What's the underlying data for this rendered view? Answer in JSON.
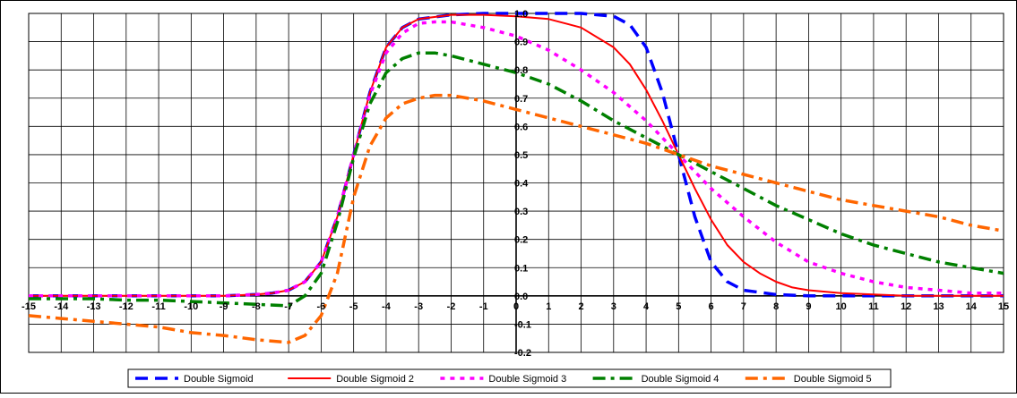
{
  "chart_data": {
    "type": "line",
    "title": "",
    "xlabel": "",
    "ylabel": "",
    "xlim": [
      -15,
      15
    ],
    "ylim": [
      -0.2,
      1.0
    ],
    "x_ticks": [
      -15,
      -14,
      -13,
      -12,
      -11,
      -10,
      -9,
      -8,
      -7,
      -6,
      -5,
      -4,
      -3,
      -2,
      -1,
      0,
      1,
      2,
      3,
      4,
      5,
      6,
      7,
      8,
      9,
      10,
      11,
      12,
      13,
      14,
      15
    ],
    "y_ticks": [
      -0.2,
      -0.1,
      0.0,
      0.1,
      0.2,
      0.3,
      0.4,
      0.5,
      0.6,
      0.7,
      0.8,
      0.9,
      1.0
    ],
    "grid": true,
    "legend_position": "bottom",
    "series": [
      {
        "name": "Double Sigmoid",
        "color": "#0000ff",
        "style": "dashed",
        "x": [
          -15,
          -14,
          -13,
          -12,
          -11,
          -10,
          -9,
          -8,
          -7.5,
          -7,
          -6.5,
          -6,
          -5.5,
          -5,
          -4.5,
          -4,
          -3.5,
          -3,
          -2,
          -1,
          0,
          1,
          2,
          3,
          3.5,
          4,
          4.5,
          5,
          5.5,
          6,
          6.5,
          7,
          8,
          9,
          10,
          11,
          12,
          13,
          14,
          15
        ],
        "y": [
          0,
          0,
          0,
          0,
          0,
          0,
          0,
          0.005,
          0.01,
          0.02,
          0.05,
          0.12,
          0.28,
          0.5,
          0.72,
          0.88,
          0.95,
          0.98,
          0.995,
          1.0,
          1.0,
          1.0,
          1.0,
          0.99,
          0.96,
          0.88,
          0.72,
          0.5,
          0.28,
          0.12,
          0.05,
          0.02,
          0.005,
          0,
          0,
          0,
          0,
          0,
          0,
          0
        ]
      },
      {
        "name": "Double Sigmoid 2",
        "color": "#ff0000",
        "style": "solid",
        "x": [
          -15,
          -14,
          -13,
          -12,
          -11,
          -10,
          -9,
          -8,
          -7.5,
          -7,
          -6.5,
          -6,
          -5.5,
          -5,
          -4.5,
          -4,
          -3.5,
          -3,
          -2,
          -1,
          0,
          1,
          2,
          3,
          3.5,
          4,
          4.5,
          5,
          5.5,
          6,
          6.5,
          7,
          7.5,
          8,
          8.5,
          9,
          10,
          11,
          12,
          13,
          14,
          15
        ],
        "y": [
          0,
          0,
          0,
          0,
          0,
          0,
          0,
          0.005,
          0.01,
          0.02,
          0.05,
          0.12,
          0.28,
          0.5,
          0.72,
          0.88,
          0.95,
          0.98,
          0.995,
          0.995,
          0.99,
          0.98,
          0.95,
          0.88,
          0.82,
          0.73,
          0.62,
          0.5,
          0.38,
          0.27,
          0.18,
          0.12,
          0.08,
          0.05,
          0.03,
          0.02,
          0.01,
          0.005,
          0,
          0,
          0,
          0
        ]
      },
      {
        "name": "Double Sigmoid 3",
        "color": "#ff00ff",
        "style": "dotted",
        "x": [
          -15,
          -14,
          -13,
          -12,
          -11,
          -10,
          -9,
          -8,
          -7.5,
          -7,
          -6.5,
          -6,
          -5.5,
          -5,
          -4.5,
          -4,
          -3.5,
          -3,
          -2.5,
          -2,
          -1,
          0,
          1,
          2,
          3,
          4,
          5,
          6,
          7,
          8,
          9,
          10,
          11,
          12,
          13,
          14,
          15
        ],
        "y": [
          0,
          0,
          0,
          0,
          0,
          0,
          0,
          0.005,
          0.01,
          0.02,
          0.05,
          0.12,
          0.28,
          0.5,
          0.71,
          0.86,
          0.93,
          0.965,
          0.97,
          0.97,
          0.95,
          0.92,
          0.87,
          0.8,
          0.72,
          0.62,
          0.5,
          0.38,
          0.28,
          0.19,
          0.12,
          0.08,
          0.05,
          0.03,
          0.02,
          0.01,
          0.01
        ]
      },
      {
        "name": "Double Sigmoid 4",
        "color": "#008000",
        "style": "dashdot",
        "x": [
          -15,
          -14,
          -13,
          -12,
          -11,
          -10,
          -9,
          -8,
          -7,
          -6.5,
          -6,
          -5.5,
          -5,
          -4.5,
          -4,
          -3.5,
          -3,
          -2.5,
          -2,
          -1,
          0,
          1,
          2,
          3,
          4,
          5,
          6,
          7,
          8,
          9,
          10,
          11,
          12,
          13,
          14,
          15
        ],
        "y": [
          -0.01,
          -0.01,
          -0.01,
          -0.015,
          -0.015,
          -0.02,
          -0.025,
          -0.03,
          -0.035,
          0.0,
          0.08,
          0.26,
          0.49,
          0.68,
          0.79,
          0.84,
          0.86,
          0.86,
          0.85,
          0.82,
          0.79,
          0.75,
          0.69,
          0.62,
          0.56,
          0.5,
          0.44,
          0.38,
          0.32,
          0.27,
          0.22,
          0.18,
          0.15,
          0.12,
          0.1,
          0.08
        ]
      },
      {
        "name": "Double Sigmoid 5",
        "color": "#ff6600",
        "style": "dashdot",
        "x": [
          -15,
          -14,
          -13,
          -12,
          -11,
          -10,
          -9,
          -8,
          -7.5,
          -7,
          -6.5,
          -6,
          -5.5,
          -5,
          -4.5,
          -4,
          -3.5,
          -3,
          -2.5,
          -2,
          -1,
          0,
          1,
          2,
          3,
          4,
          5,
          6,
          7,
          8,
          9,
          10,
          11,
          12,
          13,
          14,
          15
        ],
        "y": [
          -0.07,
          -0.08,
          -0.09,
          -0.1,
          -0.11,
          -0.13,
          -0.14,
          -0.155,
          -0.16,
          -0.165,
          -0.14,
          -0.07,
          0.08,
          0.35,
          0.53,
          0.63,
          0.68,
          0.7,
          0.71,
          0.71,
          0.69,
          0.66,
          0.63,
          0.6,
          0.57,
          0.54,
          0.5,
          0.46,
          0.43,
          0.4,
          0.37,
          0.34,
          0.32,
          0.3,
          0.28,
          0.25,
          0.23
        ]
      }
    ]
  }
}
